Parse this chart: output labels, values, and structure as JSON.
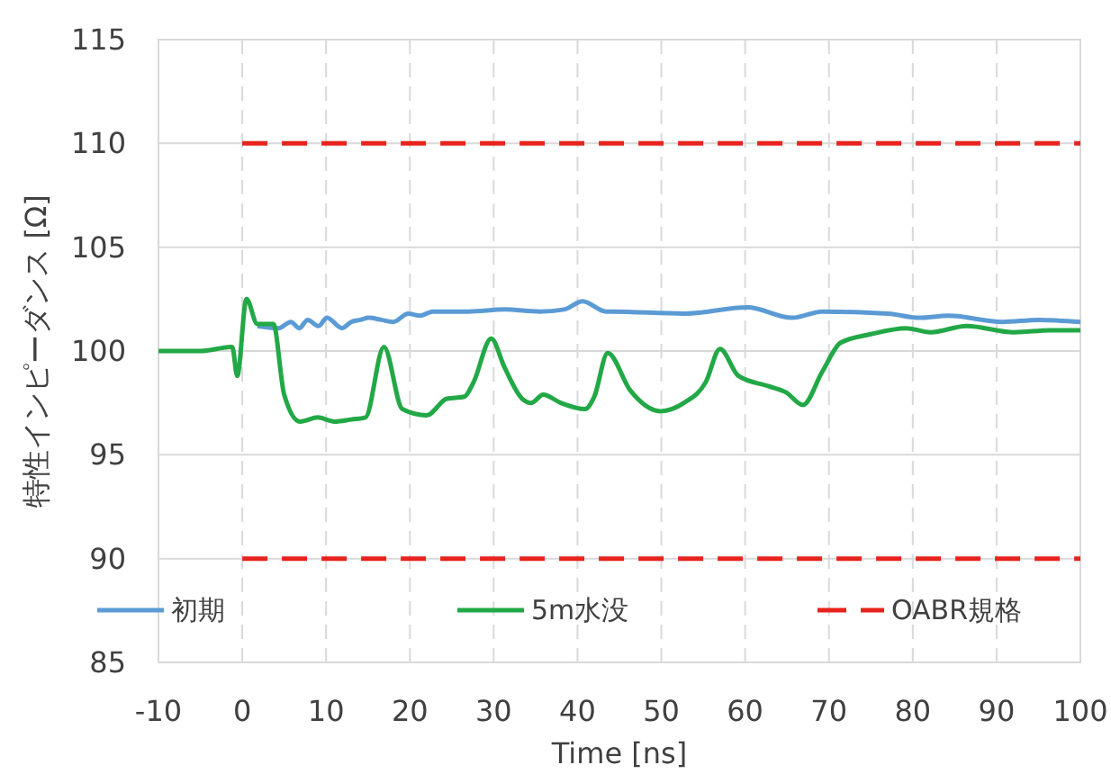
{
  "chart_data": {
    "type": "line",
    "xlabel": "Time [ns]",
    "ylabel": "特性インピーダンス [Ω]",
    "xlim": [
      -10,
      100
    ],
    "xticks": [
      -10,
      0,
      10,
      20,
      30,
      40,
      50,
      60,
      70,
      80,
      90,
      100
    ],
    "ylim": [
      85,
      115
    ],
    "yticks": [
      85,
      90,
      95,
      100,
      105,
      110,
      115
    ],
    "grid": true,
    "legend": "bottom",
    "line_style": "solid",
    "marker": "none",
    "series": [
      {
        "name": "初期",
        "color": "#5b9bd5",
        "x": [
          1.8,
          4.3,
          5.8,
          6.8,
          7.8,
          9.1,
          10.1,
          11.9,
          13,
          14.1,
          15.1,
          16.6,
          18,
          19.8,
          21.2,
          22.7,
          27,
          31.3,
          35.5,
          38.4,
          40.6,
          43.4,
          44.1,
          52.7,
          60.3,
          65.6,
          69.2,
          77.1,
          80.7,
          84.3,
          90.7,
          95,
          100
        ],
        "values": [
          101.2,
          101.1,
          101.4,
          101.1,
          101.5,
          101.2,
          101.6,
          101.1,
          101.4,
          101.5,
          101.6,
          101.5,
          101.4,
          101.8,
          101.7,
          101.9,
          101.9,
          102,
          101.9,
          102,
          102.4,
          101.9,
          101.9,
          101.8,
          102.1,
          101.6,
          101.9,
          101.8,
          101.6,
          101.7,
          101.4,
          101.5,
          101.4
        ]
      },
      {
        "name": "5m水没",
        "color": "#22a846",
        "x": [
          -10,
          -5,
          -1.2,
          -0.6,
          0.5,
          1.8,
          3.7,
          5,
          6.9,
          9,
          11,
          13,
          14.7,
          16.9,
          19.1,
          22,
          24.4,
          26.5,
          27.6,
          29.7,
          31.3,
          33.4,
          34.5,
          35.9,
          38,
          40.9,
          42,
          43.6,
          46.3,
          49.9,
          52.7,
          55.3,
          57,
          59.2,
          62.8,
          64.9,
          66.9,
          69.2,
          71.4,
          74.9,
          79.2,
          82.1,
          86.4,
          92.1,
          96.4,
          100
        ],
        "values": [
          100,
          100,
          100.2,
          98.8,
          102.5,
          101.3,
          101.3,
          97.9,
          96.6,
          96.8,
          96.6,
          96.7,
          96.8,
          100.2,
          97.2,
          96.9,
          97.7,
          97.8,
          98.5,
          100.6,
          99.2,
          97.7,
          97.5,
          97.9,
          97.5,
          97.2,
          97.8,
          99.9,
          98.1,
          97.1,
          97.5,
          98.5,
          100.1,
          98.8,
          98.3,
          98,
          97.4,
          99,
          100.4,
          100.8,
          101.1,
          100.9,
          101.2,
          100.9,
          101,
          101
        ]
      },
      {
        "name": "OABR規格",
        "color": "#e8221c",
        "line_style": "dashed",
        "x": [
          0,
          100
        ],
        "values": [
          110,
          110
        ]
      },
      {
        "color": "#e8221c",
        "line_style": "dashed",
        "x": [
          0,
          100
        ],
        "values": [
          90,
          90
        ]
      }
    ]
  }
}
